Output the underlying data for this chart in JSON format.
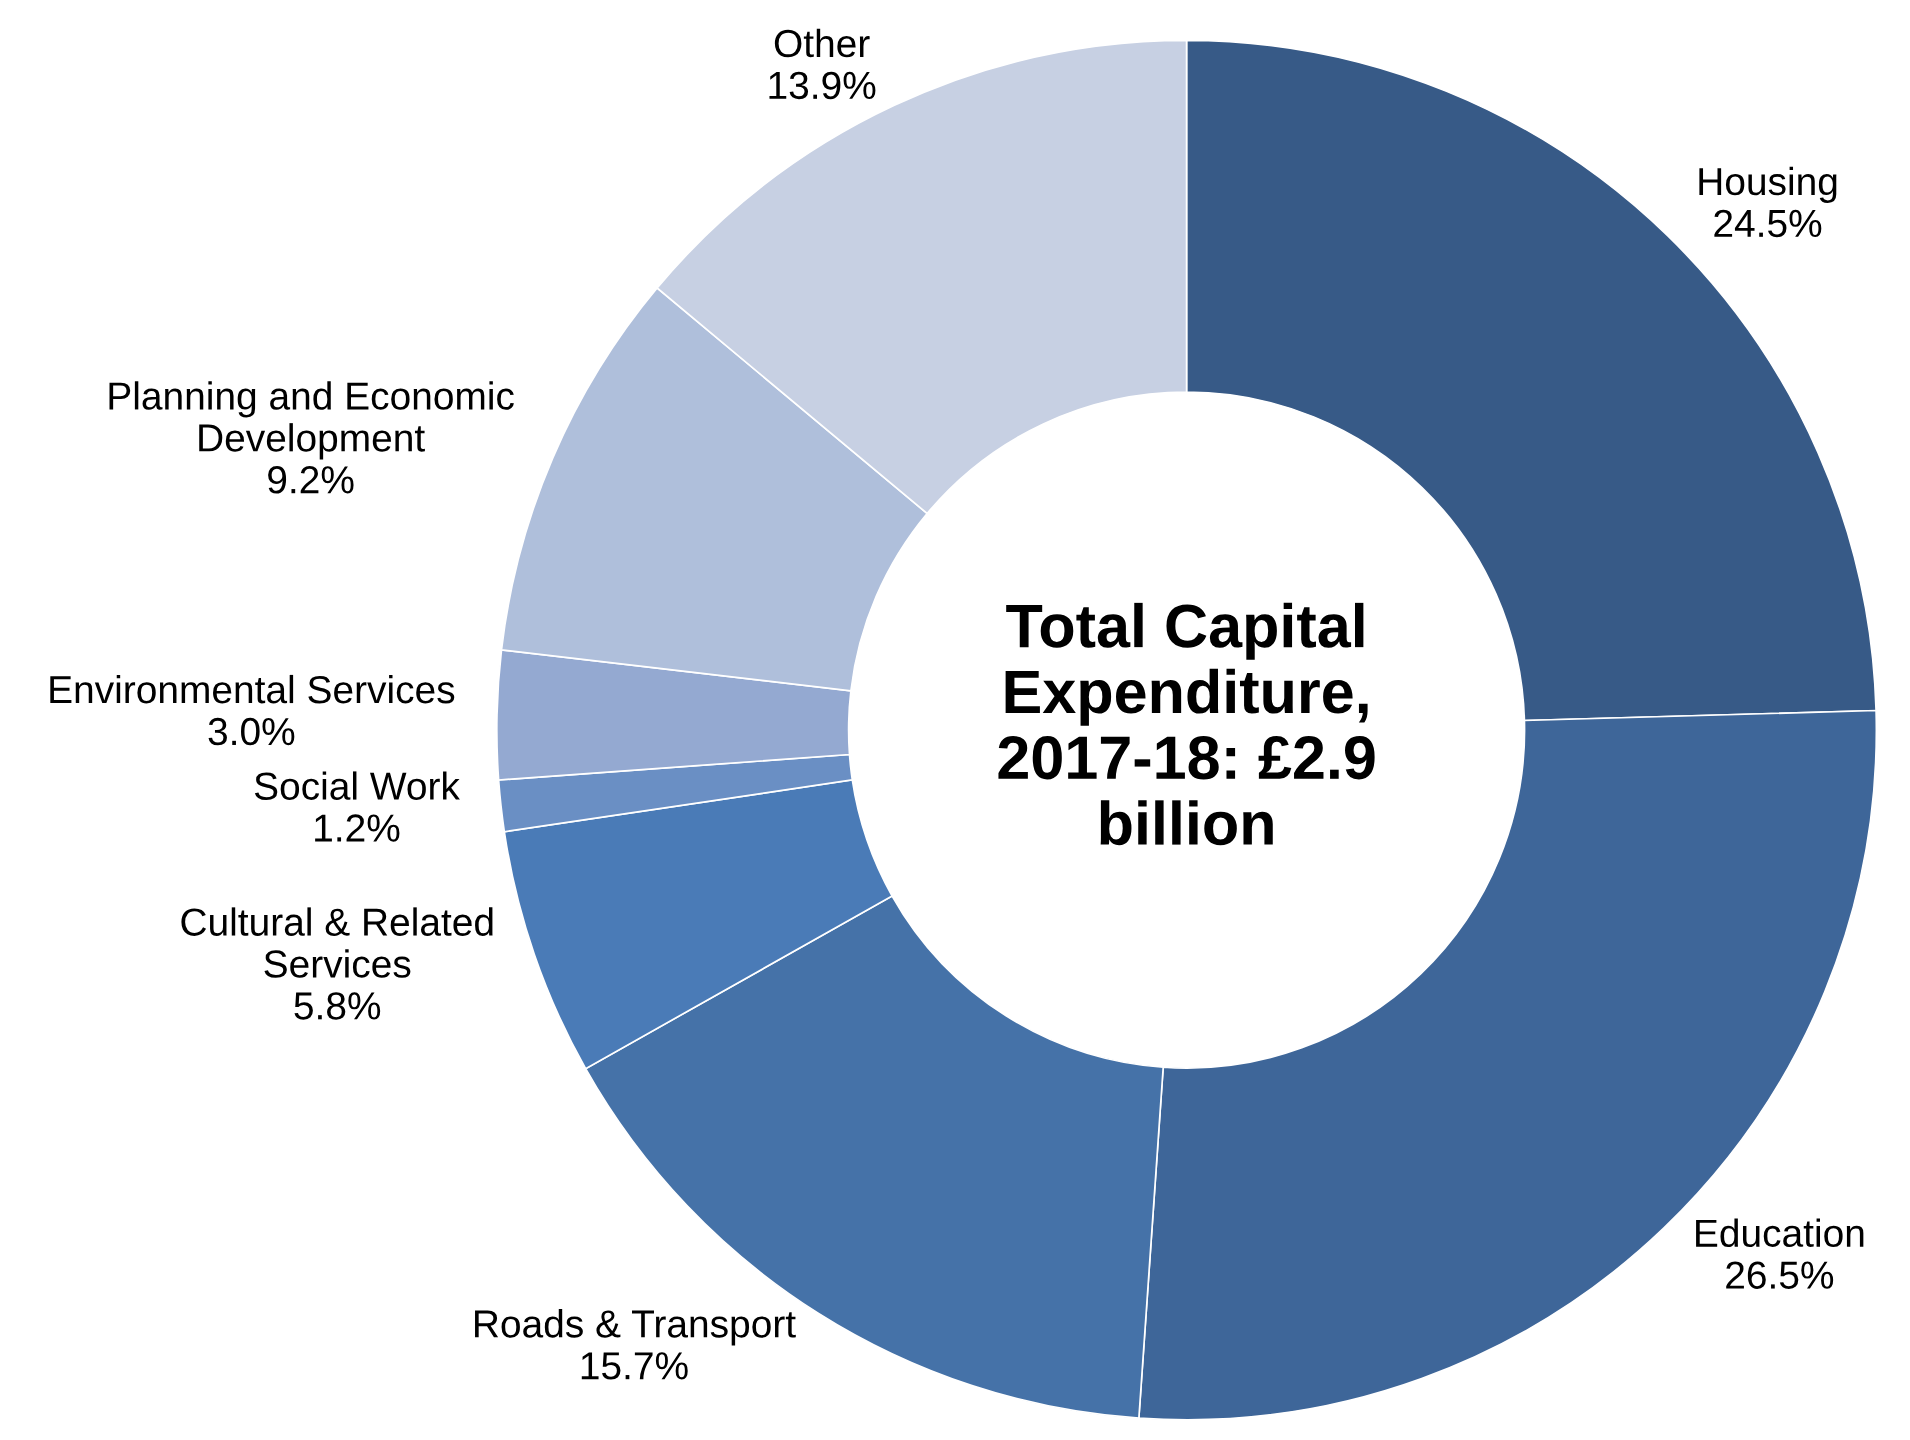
{
  "chart_data": {
    "type": "donut",
    "title": "Total Capital\nExpenditure,\n2017-18: £2.9\nbillion",
    "categories": [
      "Housing",
      "Education",
      "Roads & Transport",
      "Cultural & Related\nServices",
      "Social Work",
      "Environmental Services",
      "Planning and Economic\nDevelopment",
      "Other"
    ],
    "values": [
      24.5,
      26.5,
      15.7,
      5.8,
      1.2,
      3.0,
      9.2,
      13.9
    ],
    "value_labels": [
      "24.5%",
      "26.5%",
      "15.7%",
      "5.8%",
      "1.2%",
      "3.0%",
      "9.2%",
      "13.9%"
    ],
    "colors": [
      "#375a87",
      "#3e6699",
      "#4572a8",
      "#4a7bb7",
      "#6a8fc4",
      "#94a9d1",
      "#afbfdb",
      "#c7d0e3"
    ]
  }
}
